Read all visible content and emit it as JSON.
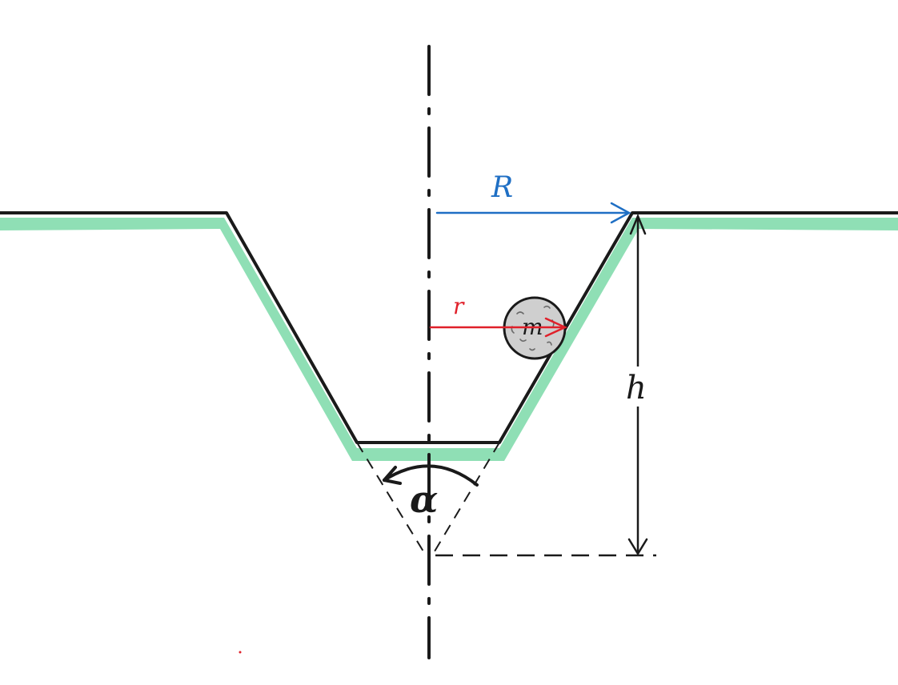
{
  "labels": {
    "outer_radius": "R",
    "inner_radius": "r",
    "height": "h",
    "cone_angle": "α",
    "mass": "m"
  },
  "colors": {
    "ground": "#8fdfb5",
    "outline": "#1a1a1a",
    "outer_radius_arrow": "#1f6fc4",
    "inner_radius_arrow": "#e0202a",
    "ball_fill": "#cfcfcf"
  }
}
